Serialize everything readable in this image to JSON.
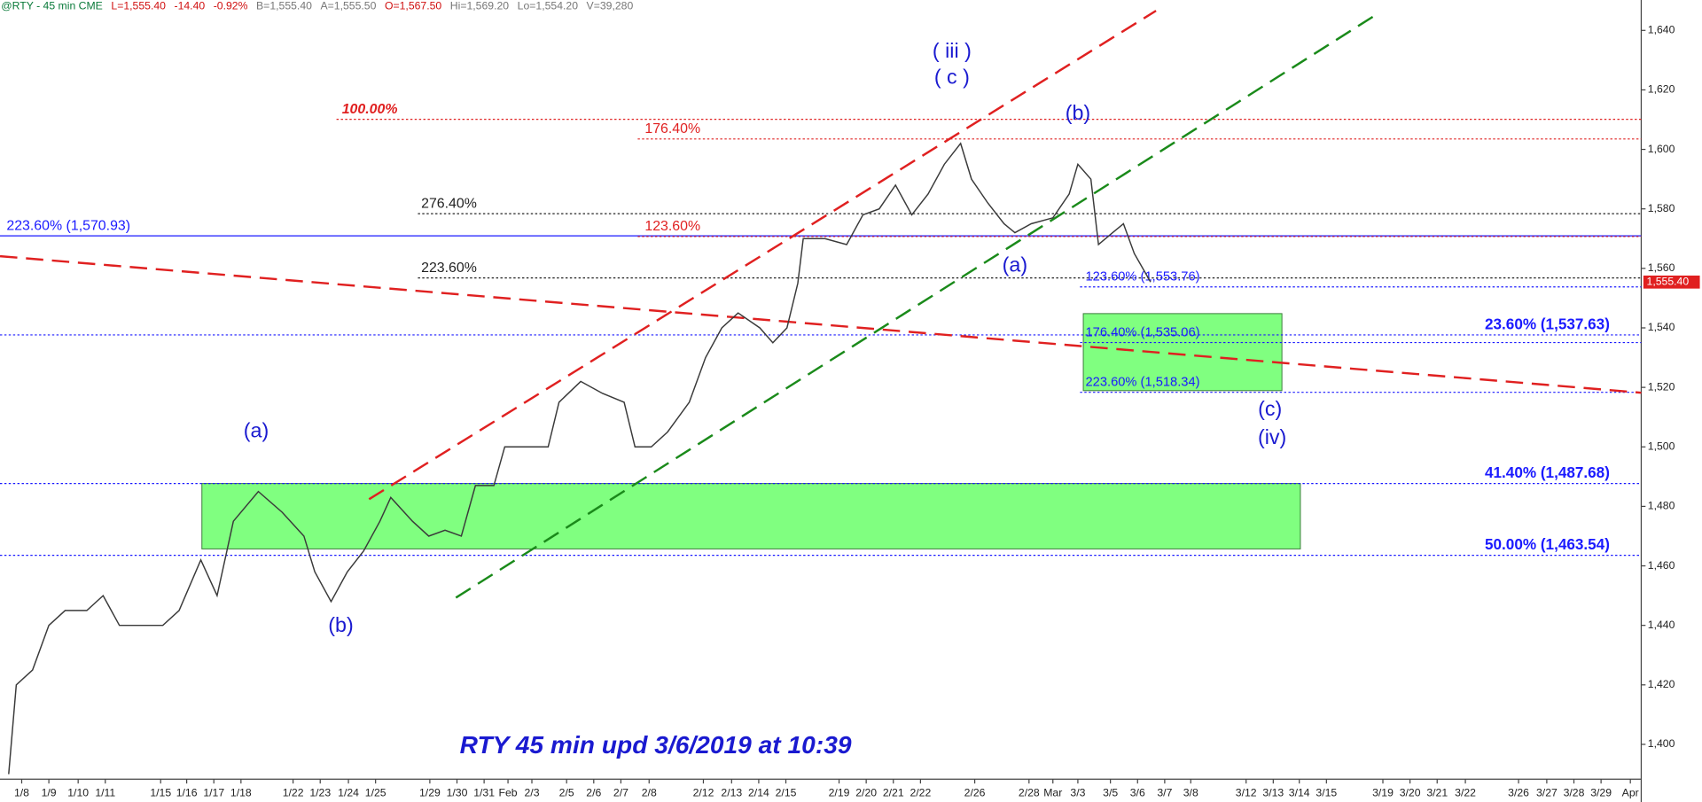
{
  "header": {
    "symbol": "@RTY - 45 min CME",
    "last": "L=1,555.40",
    "change": "-14.40",
    "change_pct": "-0.92%",
    "bid": "B=1,555.40",
    "ask": "A=1,555.50",
    "open": "O=1,567.50",
    "high": "Hi=1,569.20",
    "low": "Lo=1,554.20",
    "volume": "V=39,280"
  },
  "chart_data": {
    "type": "line",
    "title": "RTY 45 min upd 3/6/2019 at 10:39",
    "x": [
      0.32,
      0.6,
      1.2,
      1.8,
      2.4,
      3.2,
      3.8,
      4.4,
      5.2,
      6,
      6.6,
      7.4,
      8,
      8.6,
      9.52,
      10.4,
      11.2,
      11.6,
      12.2,
      12.8,
      13.4,
      14,
      14.4,
      15.2,
      15.8,
      16.4,
      17,
      17.52,
      18.2,
      18.6,
      19.6,
      20.2,
      20.6,
      21.4,
      22.2,
      23,
      23.4,
      24,
      24.6,
      25.4,
      26,
      26.6,
      27.2,
      28,
      28.48,
      29,
      29.4,
      29.6,
      30.4,
      31.2,
      31.8,
      32.4,
      33,
      33.6,
      34.2,
      34.8,
      35.4,
      35.8,
      36.4,
      37,
      37.4,
      38,
      38.8,
      39.4,
      39.72,
      40.2,
      40.48,
      41,
      41.4,
      41.8,
      42.4
    ],
    "series": [
      {
        "color": "#3a3a3a",
        "values": [
          1390,
          1420,
          1425,
          1440,
          1445,
          1445,
          1450,
          1440,
          1440,
          1440,
          1445,
          1462,
          1450,
          1475,
          1485,
          1478,
          1470,
          1458,
          1448,
          1458,
          1465,
          1475,
          1483,
          1475,
          1470,
          1472,
          1470,
          1487,
          1487,
          1500,
          1500,
          1500,
          1515,
          1522,
          1518,
          1515,
          1500,
          1500,
          1505,
          1515,
          1530,
          1540,
          1545,
          1540,
          1535,
          1540,
          1555,
          1570,
          1570,
          1568,
          1578,
          1580,
          1588,
          1578,
          1585,
          1595,
          1602,
          1590,
          1582,
          1575,
          1572,
          1575,
          1577,
          1585,
          1595,
          1590,
          1568,
          1572,
          1575,
          1565,
          1555.4
        ]
      }
    ],
    "last_price": {
      "value": 1555.4,
      "label": "1,555.40",
      "color": "#e02020"
    },
    "xlim": [
      0,
      60.48
    ],
    "ylim": [
      1388.3,
      1650.2
    ],
    "yticks": [
      {
        "value": 1400,
        "label": "1,400"
      },
      {
        "value": 1420,
        "label": "1,420"
      },
      {
        "value": 1440,
        "label": "1,440"
      },
      {
        "value": 1460,
        "label": "1,460"
      },
      {
        "value": 1480,
        "label": "1,480"
      },
      {
        "value": 1500,
        "label": "1,500"
      },
      {
        "value": 1520,
        "label": "1,520"
      },
      {
        "value": 1540,
        "label": "1,540"
      },
      {
        "value": 1560,
        "label": "1,560"
      },
      {
        "value": 1580,
        "label": "1,580"
      },
      {
        "value": 1600,
        "label": "1,600"
      },
      {
        "value": 1620,
        "label": "1,620"
      },
      {
        "value": 1640,
        "label": "1,640"
      }
    ],
    "xticks": [
      {
        "value": 0.8,
        "label": "1/8"
      },
      {
        "value": 1.8,
        "label": "1/9"
      },
      {
        "value": 2.88,
        "label": "1/10"
      },
      {
        "value": 3.88,
        "label": "1/11"
      },
      {
        "value": 5.92,
        "label": "1/15"
      },
      {
        "value": 6.88,
        "label": "1/16"
      },
      {
        "value": 7.88,
        "label": "1/17"
      },
      {
        "value": 8.88,
        "label": "1/18"
      },
      {
        "value": 10.8,
        "label": "1/22"
      },
      {
        "value": 11.8,
        "label": "1/23"
      },
      {
        "value": 12.84,
        "label": "1/24"
      },
      {
        "value": 13.84,
        "label": "1/25"
      },
      {
        "value": 15.84,
        "label": "1/29"
      },
      {
        "value": 16.84,
        "label": "1/30"
      },
      {
        "value": 17.84,
        "label": "1/31"
      },
      {
        "value": 18.72,
        "label": "Feb"
      },
      {
        "value": 19.6,
        "label": "2/3"
      },
      {
        "value": 20.88,
        "label": "2/5"
      },
      {
        "value": 21.88,
        "label": "2/6"
      },
      {
        "value": 22.88,
        "label": "2/7"
      },
      {
        "value": 23.92,
        "label": "2/8"
      },
      {
        "value": 25.92,
        "label": "2/12"
      },
      {
        "value": 26.96,
        "label": "2/13"
      },
      {
        "value": 27.96,
        "label": "2/14"
      },
      {
        "value": 28.96,
        "label": "2/15"
      },
      {
        "value": 30.92,
        "label": "2/19"
      },
      {
        "value": 31.92,
        "label": "2/20"
      },
      {
        "value": 32.92,
        "label": "2/21"
      },
      {
        "value": 33.92,
        "label": "2/22"
      },
      {
        "value": 35.92,
        "label": "2/26"
      },
      {
        "value": 37.92,
        "label": "2/28"
      },
      {
        "value": 38.8,
        "label": "Mar"
      },
      {
        "value": 39.72,
        "label": "3/3"
      },
      {
        "value": 40.92,
        "label": "3/5"
      },
      {
        "value": 41.92,
        "label": "3/6"
      },
      {
        "value": 42.92,
        "label": "3/7"
      },
      {
        "value": 43.88,
        "label": "3/8"
      },
      {
        "value": 45.92,
        "label": "3/12"
      },
      {
        "value": 46.92,
        "label": "3/13"
      },
      {
        "value": 47.88,
        "label": "3/14"
      },
      {
        "value": 48.88,
        "label": "3/15"
      },
      {
        "value": 50.96,
        "label": "3/19"
      },
      {
        "value": 51.96,
        "label": "3/20"
      },
      {
        "value": 52.96,
        "label": "3/21"
      },
      {
        "value": 54,
        "label": "3/22"
      },
      {
        "value": 55.96,
        "label": "3/26"
      },
      {
        "value": 57,
        "label": "3/27"
      },
      {
        "value": 58,
        "label": "3/28"
      },
      {
        "value": 59,
        "label": "3/29"
      },
      {
        "value": 60.08,
        "label": "Apr"
      }
    ],
    "levels": [
      {
        "label": "223.60% (1,570.93)",
        "value": 1570.93,
        "color": "#1a1aff",
        "line_style": "solid",
        "from": 0
      },
      {
        "label": "276.40%",
        "value": 1578.4,
        "color": "#222222",
        "line_style": "dotted",
        "from": 15.4
      },
      {
        "label": "223.60%",
        "value": 1556.8,
        "color": "#222222",
        "line_style": "dotted",
        "from": 15.4
      },
      {
        "label": "100.00%",
        "value": 1610.1,
        "color": "#e02020",
        "line_style": "dotted",
        "from": 12.4
      },
      {
        "label": "176.40%",
        "value": 1603.5,
        "color": "#e02020",
        "line_style": "dotted",
        "from": 23.5
      },
      {
        "label": "123.60%",
        "value": 1570.7,
        "color": "#e02020",
        "line_style": "dotted",
        "from": 23.5
      },
      {
        "label": "123.60% (1,553.76)",
        "value": 1553.76,
        "color": "#1a1aff",
        "line_style": "dotted",
        "from": 39.8
      },
      {
        "label": "176.40% (1,535.06)",
        "value": 1535.06,
        "color": "#1a1aff",
        "line_style": "dotted",
        "from": 39.8
      },
      {
        "label": "223.60% (1,518.34)",
        "value": 1518.34,
        "color": "#1a1aff",
        "line_style": "dotted",
        "from": 39.8
      },
      {
        "label": "23.60% (1,537.63)",
        "value": 1537.63,
        "color": "#1a1aff",
        "line_style": "dotted",
        "from": 0
      },
      {
        "label": "41.40% (1,487.68)",
        "value": 1487.68,
        "color": "#1a1aff",
        "line_style": "dotted",
        "from": 0
      },
      {
        "label": "50.00% (1,463.54)",
        "value": 1463.54,
        "color": "#1a1aff",
        "line_style": "dotted",
        "from": 0
      }
    ],
    "zones": [
      {
        "x": [
          7.44,
          47.92
        ],
        "y": [
          1465.7,
          1487.68
        ],
        "color": "#80ff80"
      },
      {
        "x": [
          39.92,
          47.24
        ],
        "y": [
          1518.9,
          1544.8
        ],
        "color": "#80ff80"
      }
    ],
    "trendlines": [
      {
        "x": [
          13.6,
          42.6
        ],
        "y": [
          1482.4,
          1646.6
        ],
        "color": "#e02020"
      },
      {
        "x": [
          16.8,
          50.8
        ],
        "y": [
          1449.3,
          1645.8
        ],
        "color": "#1a8a1a"
      },
      {
        "x": [
          0,
          60.48
        ],
        "y": [
          1564.1,
          1518.2
        ],
        "color": "#e02020"
      }
    ],
    "waves": [
      {
        "text": "( iii )",
        "x": 35.08,
        "y": 1632.7
      },
      {
        "text": "( c )",
        "x": 35.08,
        "y": 1623.9
      },
      {
        "text": "(b)",
        "x": 39.72,
        "y": 1611.9
      },
      {
        "text": "(a)",
        "x": 9.44,
        "y": 1505.0
      },
      {
        "text": "(b)",
        "x": 12.56,
        "y": 1439.7
      },
      {
        "text": "(a)",
        "x": 37.4,
        "y": 1560.8
      },
      {
        "text": "(c)",
        "x": 46.8,
        "y": 1512.3
      },
      {
        "text": "(iv)",
        "x": 46.88,
        "y": 1502.8
      }
    ],
    "wave_color": "#1a1ad0"
  }
}
